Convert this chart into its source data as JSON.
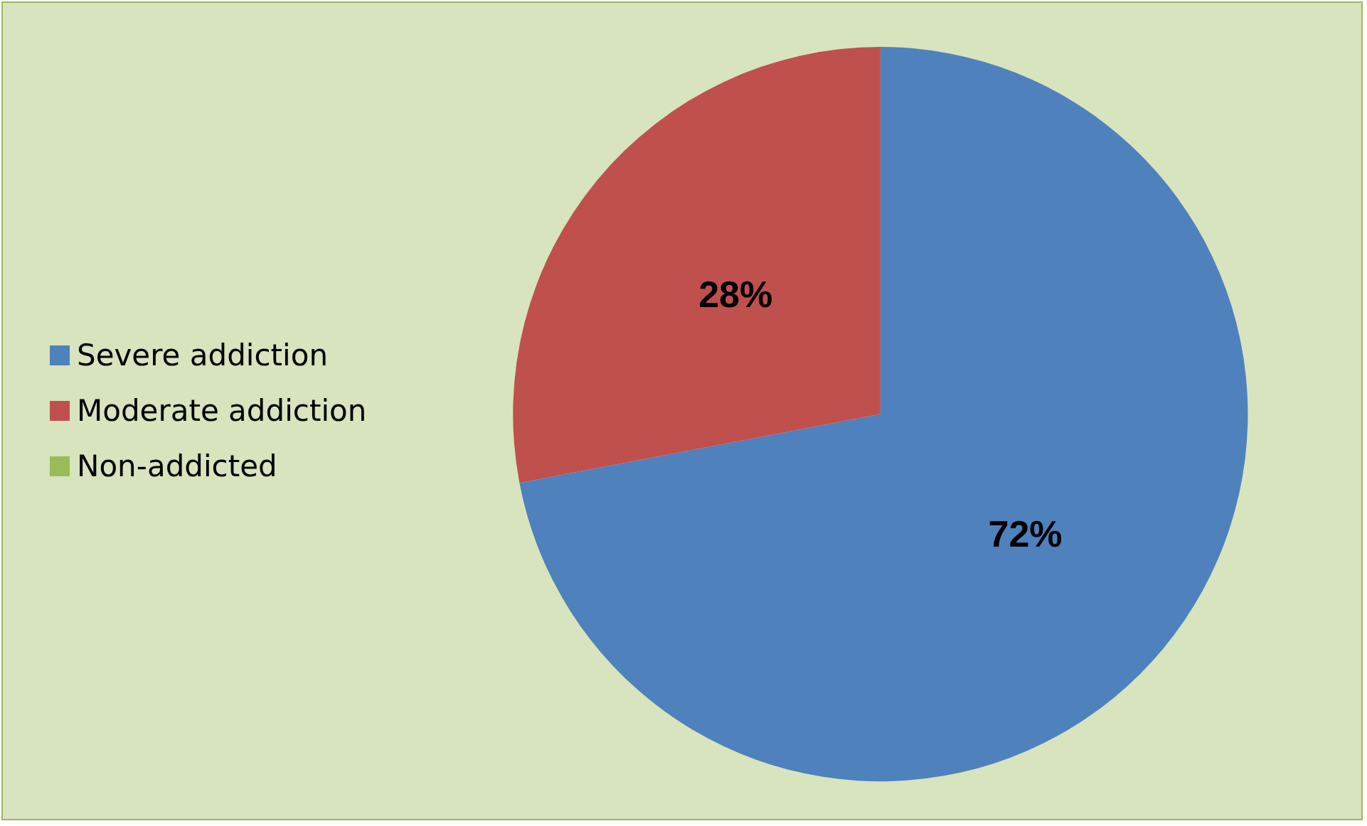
{
  "chart_data": {
    "type": "pie",
    "categories": [
      "Severe addiction",
      "Moderate addiction",
      "Non-addicted"
    ],
    "values": [
      72,
      28,
      0
    ],
    "colors": [
      "#4f81bd",
      "#c0504d",
      "#9bbb59"
    ],
    "value_labels": [
      "72%",
      "28%",
      null
    ],
    "legend": "left"
  }
}
